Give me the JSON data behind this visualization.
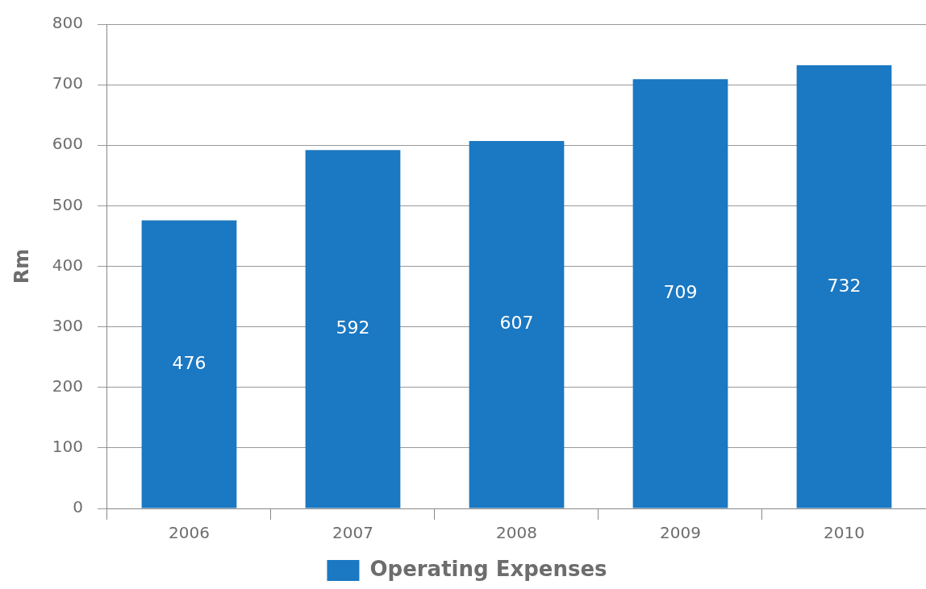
{
  "chart_data": {
    "type": "bar",
    "ylabel": "Rm",
    "categories": [
      "2006",
      "2007",
      "2008",
      "2009",
      "2010"
    ],
    "series": [
      {
        "name": "Operating Expenses",
        "color": "#1b78c2",
        "values": [
          476,
          592,
          607,
          709,
          732
        ]
      }
    ],
    "ylim": [
      0,
      800
    ],
    "yticks": [
      0,
      100,
      200,
      300,
      400,
      500,
      600,
      700,
      800
    ],
    "grid": "y",
    "legend": "bottom",
    "data_labels": true
  }
}
